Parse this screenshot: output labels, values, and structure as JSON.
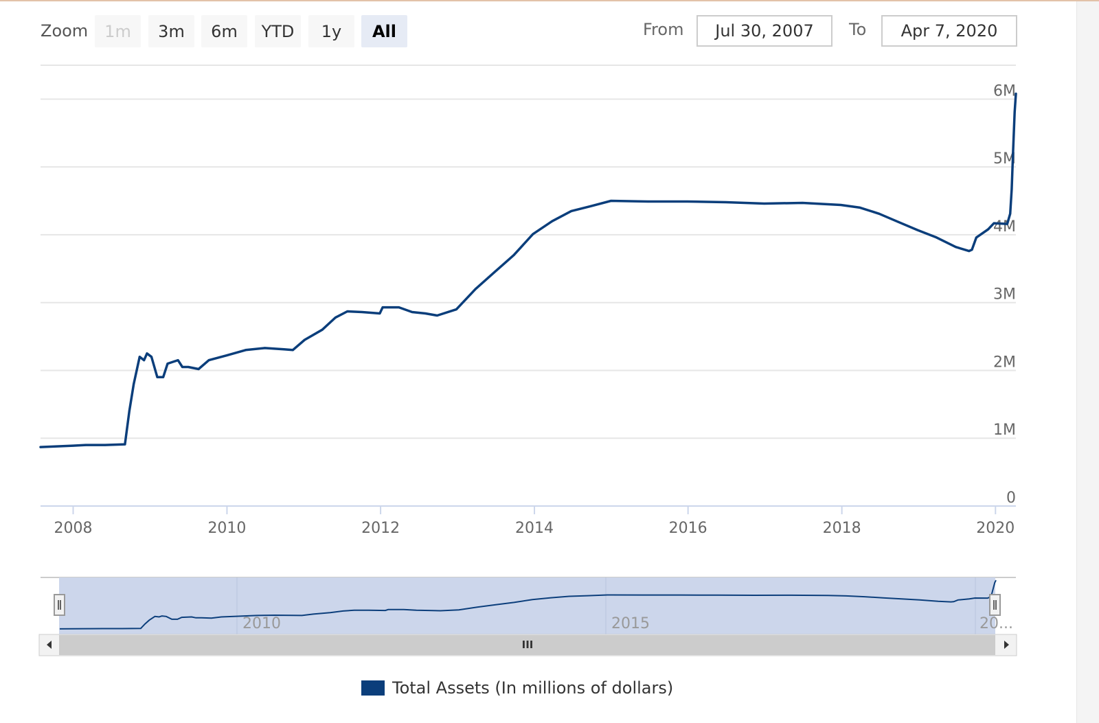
{
  "toolbar": {
    "zoom_label": "Zoom",
    "range_buttons": [
      {
        "label": "1m",
        "state": "disabled"
      },
      {
        "label": "3m",
        "state": "normal"
      },
      {
        "label": "6m",
        "state": "normal"
      },
      {
        "label": "YTD",
        "state": "normal"
      },
      {
        "label": "1y",
        "state": "normal"
      },
      {
        "label": "All",
        "state": "selected"
      }
    ],
    "from_label": "From",
    "from_value": "Jul 30, 2007",
    "to_label": "To",
    "to_value": "Apr 7, 2020"
  },
  "navigator": {
    "x_ticks": [
      "2010",
      "2015",
      "20..."
    ],
    "scrollbar_grip": "III"
  },
  "colors": {
    "series": "#0b3e7b",
    "navigator_mask": "#ccd6eb",
    "gridline": "#e6e6e6",
    "selected_button": "#e6ebf5"
  },
  "chart_data": {
    "type": "line",
    "title": "",
    "xlabel": "",
    "ylabel": "",
    "x_axis_type": "datetime",
    "x_range": [
      "2007-07-30",
      "2020-04-07"
    ],
    "ylim": [
      0,
      6500000
    ],
    "y_ticks": [
      "0",
      "1M",
      "2M",
      "3M",
      "4M",
      "5M",
      "6M"
    ],
    "x_ticks": [
      "2008",
      "2010",
      "2012",
      "2014",
      "2016",
      "2018",
      "2020"
    ],
    "grid": true,
    "legend_position": "bottom-center",
    "series": [
      {
        "name": "Total Assets (In millions of dollars)",
        "color": "#0b3e7b",
        "points": [
          [
            "2007-07-30",
            870000
          ],
          [
            "2007-12-31",
            890000
          ],
          [
            "2008-03-01",
            900000
          ],
          [
            "2008-06-01",
            900000
          ],
          [
            "2008-09-03",
            910000
          ],
          [
            "2008-09-24",
            1400000
          ],
          [
            "2008-10-15",
            1800000
          ],
          [
            "2008-11-12",
            2200000
          ],
          [
            "2008-12-03",
            2150000
          ],
          [
            "2008-12-17",
            2250000
          ],
          [
            "2009-01-07",
            2200000
          ],
          [
            "2009-02-04",
            1900000
          ],
          [
            "2009-03-04",
            1900000
          ],
          [
            "2009-03-25",
            2100000
          ],
          [
            "2009-05-13",
            2150000
          ],
          [
            "2009-06-03",
            2050000
          ],
          [
            "2009-07-01",
            2050000
          ],
          [
            "2009-08-19",
            2020000
          ],
          [
            "2009-10-07",
            2150000
          ],
          [
            "2009-12-30",
            2220000
          ],
          [
            "2010-03-31",
            2300000
          ],
          [
            "2010-06-30",
            2330000
          ],
          [
            "2010-09-29",
            2310000
          ],
          [
            "2010-11-10",
            2300000
          ],
          [
            "2011-01-05",
            2450000
          ],
          [
            "2011-03-30",
            2600000
          ],
          [
            "2011-06-01",
            2780000
          ],
          [
            "2011-07-27",
            2870000
          ],
          [
            "2011-10-05",
            2860000
          ],
          [
            "2011-12-28",
            2840000
          ],
          [
            "2012-01-11",
            2930000
          ],
          [
            "2012-03-28",
            2930000
          ],
          [
            "2012-05-30",
            2860000
          ],
          [
            "2012-08-01",
            2840000
          ],
          [
            "2012-09-26",
            2810000
          ],
          [
            "2012-12-26",
            2900000
          ],
          [
            "2013-03-27",
            3200000
          ],
          [
            "2013-06-26",
            3450000
          ],
          [
            "2013-09-25",
            3700000
          ],
          [
            "2013-12-25",
            4010000
          ],
          [
            "2014-03-26",
            4200000
          ],
          [
            "2014-06-25",
            4350000
          ],
          [
            "2014-09-24",
            4420000
          ],
          [
            "2014-12-31",
            4500000
          ],
          [
            "2015-06-24",
            4490000
          ],
          [
            "2015-12-30",
            4490000
          ],
          [
            "2016-06-29",
            4480000
          ],
          [
            "2016-12-28",
            4460000
          ],
          [
            "2017-06-28",
            4470000
          ],
          [
            "2017-12-27",
            4440000
          ],
          [
            "2018-03-28",
            4400000
          ],
          [
            "2018-06-27",
            4310000
          ],
          [
            "2018-09-26",
            4190000
          ],
          [
            "2018-12-26",
            4070000
          ],
          [
            "2019-03-27",
            3960000
          ],
          [
            "2019-06-26",
            3820000
          ],
          [
            "2019-08-28",
            3760000
          ],
          [
            "2019-09-11",
            3780000
          ],
          [
            "2019-10-02",
            3960000
          ],
          [
            "2019-11-27",
            4080000
          ],
          [
            "2019-12-25",
            4170000
          ],
          [
            "2020-02-26",
            4160000
          ],
          [
            "2020-03-11",
            4310000
          ],
          [
            "2020-03-18",
            4670000
          ],
          [
            "2020-03-25",
            5250000
          ],
          [
            "2020-04-01",
            5810000
          ],
          [
            "2020-04-07",
            6080000
          ]
        ]
      }
    ]
  }
}
